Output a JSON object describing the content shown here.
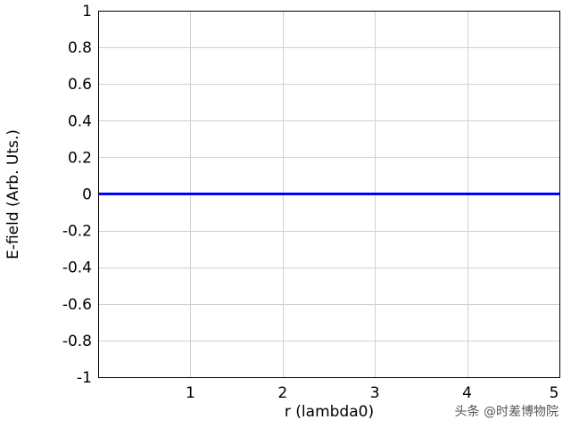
{
  "chart_data": {
    "type": "line",
    "title": "",
    "xlabel": "r (lambda0)",
    "ylabel": "E-field (Arb. Uts.)",
    "xlim": [
      0,
      5
    ],
    "ylim": [
      -1,
      1
    ],
    "grid": true,
    "x_ticks": [
      "1",
      "2",
      "3",
      "4",
      "5"
    ],
    "y_ticks": [
      "1",
      "0.8",
      "0.6",
      "0.4",
      "0.2",
      "0",
      "-0.2",
      "-0.4",
      "-0.6",
      "-0.8",
      "-1"
    ],
    "series": [
      {
        "color": "#0000ff",
        "x": [
          0,
          5
        ],
        "y": [
          0,
          0
        ]
      }
    ]
  },
  "watermark": "头条 @时差博物院"
}
